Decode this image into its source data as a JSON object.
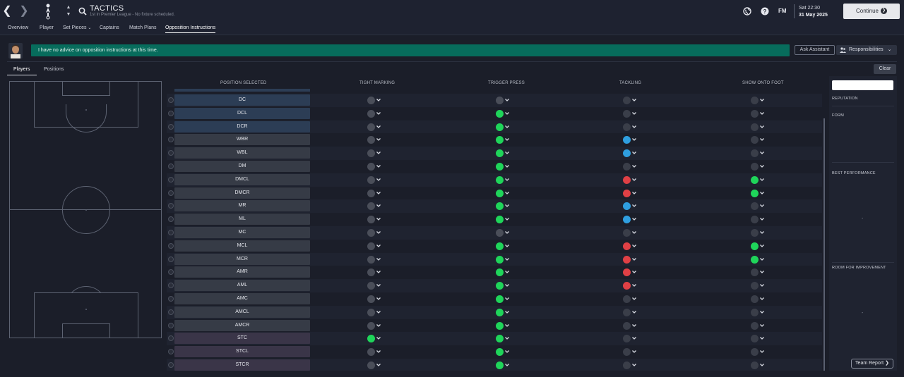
{
  "header": {
    "title": "TACTICS",
    "subtitle": "1st in Premier League - No fixture scheduled.",
    "fm_logo": "FM",
    "date_time": "Sat 22:30",
    "date": "31 May 2025",
    "continue_label": "Continue"
  },
  "tabs": [
    {
      "label": "Overview"
    },
    {
      "label": "Player"
    },
    {
      "label": "Set Pieces"
    },
    {
      "label": "Captains"
    },
    {
      "label": "Match Plans"
    },
    {
      "label": "Opposition Instructions",
      "active": true
    }
  ],
  "advice": {
    "text": "I have no advice on opposition instructions at this time.",
    "ask_label": "Ask Assistant",
    "responsibilities_label": "Responsibilities"
  },
  "subtabs": [
    {
      "label": "Players",
      "active": true
    },
    {
      "label": "Positions"
    }
  ],
  "clear_label": "Clear",
  "table": {
    "headers": {
      "position": "POSITION SELECTED",
      "tight_marking": "TIGHT MARKING",
      "trigger_press": "TRIGGER PRESS",
      "tackling": "TACKLING",
      "show_onto_foot": "SHOW ONTO FOOT"
    },
    "rows": [
      {
        "pos": "DC",
        "group": "def",
        "tm": "grey",
        "tp": "grey",
        "tk": "dark",
        "sf": "dark"
      },
      {
        "pos": "DCL",
        "group": "def",
        "tm": "grey",
        "tp": "green",
        "tk": "dark",
        "sf": "dark"
      },
      {
        "pos": "DCR",
        "group": "def",
        "tm": "grey",
        "tp": "green",
        "tk": "dark",
        "sf": "dark"
      },
      {
        "pos": "WBR",
        "group": "mid",
        "tm": "grey",
        "tp": "green",
        "tk": "blue",
        "sf": "dark"
      },
      {
        "pos": "WBL",
        "group": "mid",
        "tm": "grey",
        "tp": "green",
        "tk": "blue",
        "sf": "dark"
      },
      {
        "pos": "DM",
        "group": "mid",
        "tm": "grey",
        "tp": "green",
        "tk": "dark",
        "sf": "dark"
      },
      {
        "pos": "DMCL",
        "group": "mid",
        "tm": "grey",
        "tp": "green",
        "tk": "red",
        "sf": "green"
      },
      {
        "pos": "DMCR",
        "group": "mid",
        "tm": "grey",
        "tp": "green",
        "tk": "red",
        "sf": "green"
      },
      {
        "pos": "MR",
        "group": "mid",
        "tm": "grey",
        "tp": "green",
        "tk": "blue",
        "sf": "dark"
      },
      {
        "pos": "ML",
        "group": "mid",
        "tm": "grey",
        "tp": "green",
        "tk": "blue",
        "sf": "dark"
      },
      {
        "pos": "MC",
        "group": "mid",
        "tm": "grey",
        "tp": "grey",
        "tk": "dark",
        "sf": "dark"
      },
      {
        "pos": "MCL",
        "group": "mid",
        "tm": "grey",
        "tp": "green",
        "tk": "red",
        "sf": "green"
      },
      {
        "pos": "MCR",
        "group": "mid",
        "tm": "grey",
        "tp": "green",
        "tk": "red",
        "sf": "green"
      },
      {
        "pos": "AMR",
        "group": "mid",
        "tm": "grey",
        "tp": "green",
        "tk": "red",
        "sf": "dark"
      },
      {
        "pos": "AML",
        "group": "mid",
        "tm": "grey",
        "tp": "green",
        "tk": "red",
        "sf": "dark"
      },
      {
        "pos": "AMC",
        "group": "mid",
        "tm": "grey",
        "tp": "green",
        "tk": "dark",
        "sf": "dark"
      },
      {
        "pos": "AMCL",
        "group": "mid",
        "tm": "grey",
        "tp": "green",
        "tk": "dark",
        "sf": "dark"
      },
      {
        "pos": "AMCR",
        "group": "mid",
        "tm": "grey",
        "tp": "green",
        "tk": "dark",
        "sf": "dark"
      },
      {
        "pos": "STC",
        "group": "att",
        "tm": "green",
        "tp": "green",
        "tk": "dark",
        "sf": "dark"
      },
      {
        "pos": "STCL",
        "group": "att",
        "tm": "grey",
        "tp": "green",
        "tk": "dark",
        "sf": "dark"
      },
      {
        "pos": "STCR",
        "group": "att",
        "tm": "grey",
        "tp": "green",
        "tk": "dark",
        "sf": "dark"
      }
    ]
  },
  "right_panel": {
    "reputation": "REPUTATION",
    "form": "FORM",
    "best_performance": "BEST PERFORMANCE",
    "best_value": "-",
    "room_for_improvement": "ROOM FOR IMPROVEMENT",
    "room_value": "-",
    "team_report_label": "Team Report"
  },
  "colors": {
    "advice_bg": "#076c5c",
    "defender": "#2c3d55",
    "midfielder": "#363b46",
    "attacker": "#3a3548",
    "green": "#1fd55a",
    "red": "#e04045",
    "blue": "#2f9fe0"
  }
}
